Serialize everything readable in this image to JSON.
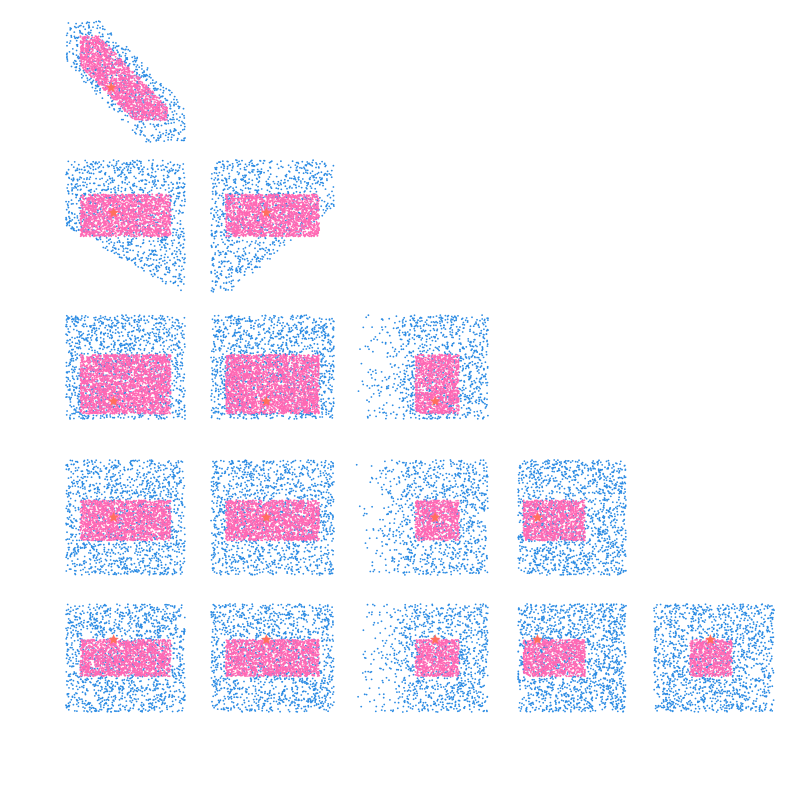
{
  "chart_data": {
    "type": "scatter",
    "layout": "corner-plot",
    "title": "",
    "dimensions": 5,
    "axis_labels": [],
    "grid": false,
    "legend": "none",
    "colors": {
      "samples": "#2b8be3",
      "accepted_region": "#ff69b4",
      "truth_marker": "#ff6f5e"
    },
    "series": [
      {
        "role": "samples",
        "marker": "dot",
        "color": "#2b8be3"
      },
      {
        "role": "accepted_region",
        "marker": "dot",
        "color": "#ff69b4"
      },
      {
        "role": "truth",
        "marker": "star",
        "color": "#ff6f5e"
      }
    ],
    "panels": [
      {
        "row": 0,
        "col": 0,
        "sample_shape": "diagonal-band",
        "region_x": [
          0.12,
          0.85
        ],
        "region_y": [
          0.12,
          0.82
        ],
        "truth": [
          0.38,
          0.55
        ]
      },
      {
        "row": 1,
        "col": 0,
        "sample_shape": "lower-left-cut",
        "region_x": [
          0.12,
          0.88
        ],
        "region_y": [
          0.26,
          0.58
        ],
        "truth": [
          0.4,
          0.4
        ]
      },
      {
        "row": 1,
        "col": 1,
        "sample_shape": "lower-right-cut",
        "region_x": [
          0.12,
          0.88
        ],
        "region_y": [
          0.26,
          0.58
        ],
        "truth": [
          0.45,
          0.4
        ]
      },
      {
        "row": 2,
        "col": 0,
        "sample_shape": "box",
        "region_x": [
          0.12,
          0.88
        ],
        "region_y": [
          0.38,
          0.95
        ],
        "truth": [
          0.4,
          0.83
        ]
      },
      {
        "row": 2,
        "col": 1,
        "sample_shape": "box",
        "region_x": [
          0.12,
          0.88
        ],
        "region_y": [
          0.38,
          0.95
        ],
        "truth": [
          0.45,
          0.83
        ]
      },
      {
        "row": 2,
        "col": 2,
        "sample_shape": "sparse-left",
        "region_x": [
          0.45,
          0.78
        ],
        "region_y": [
          0.38,
          0.95
        ],
        "truth": [
          0.6,
          0.83
        ]
      },
      {
        "row": 3,
        "col": 0,
        "sample_shape": "box",
        "region_x": [
          0.12,
          0.88
        ],
        "region_y": [
          0.35,
          0.7
        ],
        "truth": [
          0.4,
          0.5
        ]
      },
      {
        "row": 3,
        "col": 1,
        "sample_shape": "box",
        "region_x": [
          0.12,
          0.88
        ],
        "region_y": [
          0.35,
          0.7
        ],
        "truth": [
          0.45,
          0.5
        ]
      },
      {
        "row": 3,
        "col": 2,
        "sample_shape": "sparse-left",
        "region_x": [
          0.45,
          0.78
        ],
        "region_y": [
          0.35,
          0.7
        ],
        "truth": [
          0.6,
          0.5
        ]
      },
      {
        "row": 3,
        "col": 3,
        "sample_shape": "box",
        "region_x": [
          0.05,
          0.62
        ],
        "region_y": [
          0.35,
          0.7
        ],
        "truth": [
          0.18,
          0.5
        ]
      },
      {
        "row": 4,
        "col": 0,
        "sample_shape": "box",
        "region_x": [
          0.12,
          0.88
        ],
        "region_y": [
          0.33,
          0.67
        ],
        "truth": [
          0.4,
          0.33
        ]
      },
      {
        "row": 4,
        "col": 1,
        "sample_shape": "box",
        "region_x": [
          0.12,
          0.88
        ],
        "region_y": [
          0.33,
          0.67
        ],
        "truth": [
          0.45,
          0.33
        ]
      },
      {
        "row": 4,
        "col": 2,
        "sample_shape": "sparse-left",
        "region_x": [
          0.45,
          0.78
        ],
        "region_y": [
          0.33,
          0.67
        ],
        "truth": [
          0.6,
          0.33
        ]
      },
      {
        "row": 4,
        "col": 3,
        "sample_shape": "box",
        "region_x": [
          0.05,
          0.62
        ],
        "region_y": [
          0.33,
          0.67
        ],
        "truth": [
          0.18,
          0.33
        ]
      },
      {
        "row": 4,
        "col": 4,
        "sample_shape": "box",
        "region_x": [
          0.3,
          0.65
        ],
        "region_y": [
          0.33,
          0.67
        ],
        "truth": [
          0.47,
          0.33
        ]
      }
    ]
  }
}
